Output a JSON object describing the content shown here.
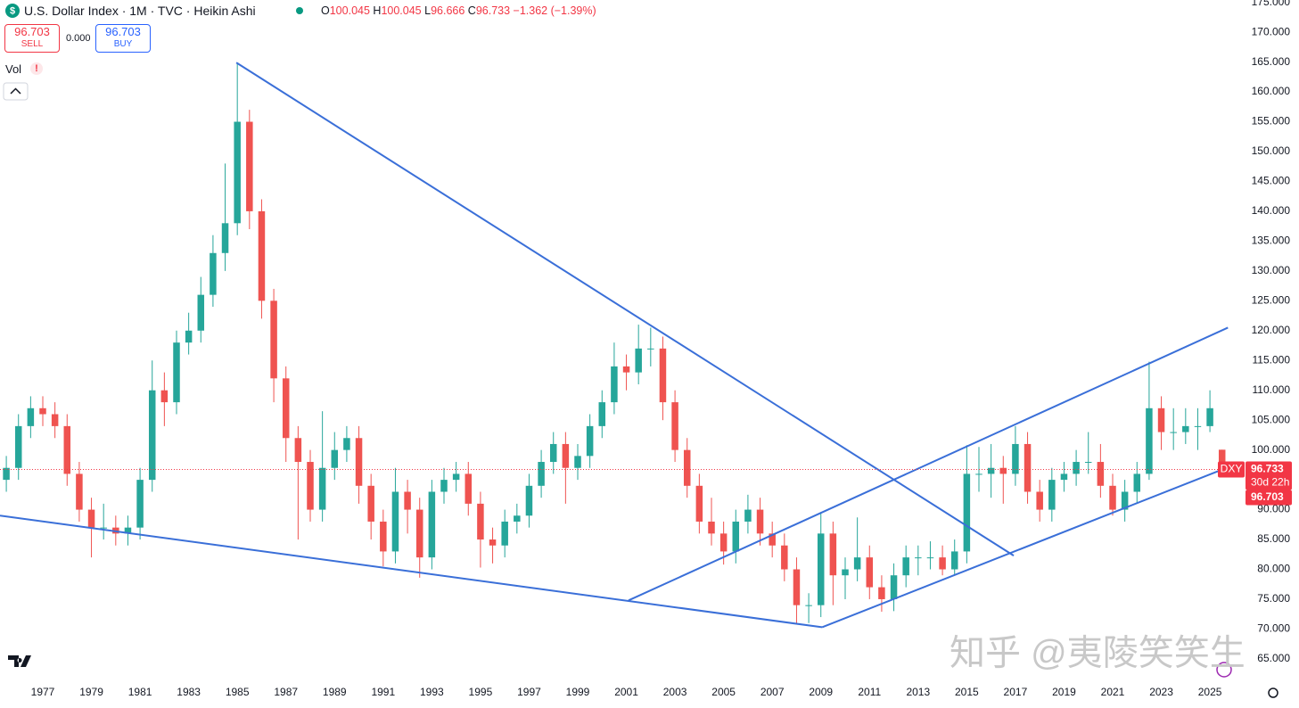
{
  "chart_data": {
    "type": "candlestick",
    "title": "U.S. Dollar Index · 1M · TVC · Heikin Ashi",
    "ohlc_labels": [
      "O",
      "H",
      "L",
      "C"
    ],
    "ohlc": [
      100.045,
      100.045,
      96.666,
      96.733
    ],
    "change": "−1.362 (−1.39%)",
    "sell": {
      "price": 96.703,
      "label": "SELL"
    },
    "spread": "0.000",
    "buy": {
      "price": 96.703,
      "label": "BUY"
    },
    "volume_label": "Vol",
    "watermark": "知乎 @夷陵笑笑生",
    "up_color": "#26a69a",
    "down_color": "#ef5350",
    "x": [
      1975.5,
      1976,
      1976.5,
      1977,
      1977.5,
      1978,
      1978.5,
      1979,
      1979.5,
      1980,
      1980.5,
      1981,
      1981.5,
      1982,
      1982.5,
      1983,
      1983.5,
      1984,
      1984.5,
      1985,
      1985.5,
      1986,
      1986.5,
      1987,
      1987.5,
      1988,
      1988.5,
      1989,
      1989.5,
      1990,
      1990.5,
      1991,
      1991.5,
      1992,
      1992.5,
      1993,
      1993.5,
      1994,
      1994.5,
      1995,
      1995.5,
      1996,
      1996.5,
      1997,
      1997.5,
      1998,
      1998.5,
      1999,
      1999.5,
      2000,
      2000.5,
      2001,
      2001.5,
      2002,
      2002.5,
      2003,
      2003.5,
      2004,
      2004.5,
      2005,
      2005.5,
      2006,
      2006.5,
      2007,
      2007.5,
      2008,
      2008.5,
      2009,
      2009.5,
      2010,
      2010.5,
      2011,
      2011.5,
      2012,
      2012.5,
      2013,
      2013.5,
      2014,
      2014.5,
      2015,
      2015.5,
      2016,
      2016.5,
      2017,
      2017.5,
      2018,
      2018.5,
      2019,
      2019.5,
      2020,
      2020.5,
      2021,
      2021.5,
      2022,
      2022.5,
      2023,
      2023.5,
      2024,
      2024.5,
      2025,
      2025.5
    ],
    "open": [
      95,
      97,
      104,
      107,
      106,
      104,
      96,
      90,
      87,
      87,
      86,
      87,
      95,
      110,
      108,
      118,
      120,
      126,
      133,
      138,
      155,
      140,
      125,
      112,
      102,
      98,
      90,
      97,
      100,
      102,
      94,
      88,
      83,
      93,
      90,
      82,
      93,
      95,
      96,
      91,
      85,
      84,
      88,
      89,
      94,
      98,
      101,
      97,
      99,
      104,
      108,
      114,
      113,
      117,
      117,
      108,
      100,
      94,
      88,
      86,
      83,
      88,
      90,
      86,
      84,
      80,
      74,
      74,
      86,
      79,
      80,
      82,
      77,
      75,
      79,
      82,
      82,
      82,
      80,
      83,
      96,
      96,
      97,
      96,
      101,
      93,
      90,
      95,
      96,
      98,
      98,
      94,
      90,
      93,
      96,
      107,
      103,
      103,
      104,
      104,
      100.045
    ],
    "high": [
      99,
      106,
      109,
      109,
      108,
      106,
      98,
      92,
      91,
      89,
      89,
      97,
      115,
      113,
      120,
      123,
      129,
      136,
      148,
      164.7,
      157,
      142,
      127,
      114,
      104,
      100,
      106.5,
      103,
      104,
      104,
      96,
      90,
      97,
      95,
      92,
      95,
      97,
      98,
      98,
      93,
      87,
      90,
      91,
      96,
      100,
      103,
      103,
      101,
      106,
      110,
      118,
      116,
      121,
      120.5,
      119,
      110,
      102,
      96,
      92,
      88,
      90,
      92.5,
      92,
      88,
      86,
      82,
      76,
      89.6,
      88,
      82,
      88.7,
      84,
      79,
      81,
      84,
      84,
      84.7,
      84,
      85,
      100.8,
      100.5,
      101,
      99,
      104,
      103,
      95,
      97,
      98,
      100,
      103,
      101,
      96,
      95,
      98,
      114.8,
      109,
      107,
      107,
      107,
      110,
      100.045
    ],
    "low": [
      93,
      95,
      102,
      104,
      102,
      94,
      88,
      82,
      85,
      84,
      84,
      85,
      93,
      104,
      106,
      116,
      118,
      124,
      130,
      136,
      137,
      122,
      108,
      98,
      85,
      88,
      88,
      95,
      98,
      91,
      85,
      80.5,
      81,
      86,
      78.6,
      80,
      91,
      93,
      89,
      80.3,
      81,
      82,
      86,
      87,
      92,
      96,
      91,
      95,
      97,
      102,
      106,
      110,
      111,
      114,
      105,
      98,
      92,
      86,
      84,
      80.8,
      81,
      86,
      84,
      82,
      78,
      71,
      71,
      72,
      74,
      75,
      78,
      75,
      72.9,
      73,
      77,
      79,
      80,
      79,
      79,
      81,
      93,
      92,
      91,
      94,
      91,
      88,
      88,
      93,
      94,
      96,
      92,
      89,
      88,
      91,
      95,
      100,
      100,
      101,
      100,
      103,
      96.666
    ],
    "close": [
      97,
      104,
      107,
      106,
      104,
      96,
      90,
      87,
      87,
      86,
      87,
      95,
      110,
      108,
      118,
      120,
      126,
      133,
      138,
      155,
      140,
      125,
      112,
      102,
      98,
      90,
      97,
      100,
      102,
      94,
      88,
      83,
      93,
      90,
      82,
      93,
      95,
      96,
      91,
      85,
      84,
      88,
      89,
      94,
      98,
      101,
      97,
      99,
      104,
      108,
      114,
      113,
      117,
      117,
      108,
      100,
      94,
      88,
      86,
      83,
      88,
      90,
      86,
      84,
      80,
      74,
      74,
      86,
      79,
      80,
      82,
      77,
      75,
      79,
      82,
      82,
      82,
      80,
      83,
      96,
      96,
      97,
      96,
      101,
      93,
      90,
      95,
      96,
      98,
      98,
      94,
      90,
      93,
      96,
      107,
      103,
      103,
      104,
      104,
      107,
      96.733
    ],
    "xlim": [
      1975.24,
      2026.39
    ],
    "xticks": [
      1977,
      1979,
      1981,
      1983,
      1985,
      1987,
      1989,
      1991,
      1993,
      1995,
      1997,
      1999,
      2001,
      2003,
      2005,
      2007,
      2009,
      2011,
      2013,
      2015,
      2017,
      2019,
      2021,
      2023,
      2025
    ],
    "ylim": [
      61.1,
      175.4
    ],
    "yticks": [
      {
        "value": 65,
        "label": "65.000"
      },
      {
        "value": 70,
        "label": "70.000"
      },
      {
        "value": 75,
        "label": "75.000"
      },
      {
        "value": 80,
        "label": "80.000"
      },
      {
        "value": 85,
        "label": "85.000"
      },
      {
        "value": 90,
        "label": "90.000"
      },
      {
        "value": 95,
        "label": "95.000"
      },
      {
        "value": 100,
        "label": "100.000"
      },
      {
        "value": 105,
        "label": "105.000"
      },
      {
        "value": 110,
        "label": "110.000"
      },
      {
        "value": 115,
        "label": "115.000"
      },
      {
        "value": 120,
        "label": "120.000"
      },
      {
        "value": 125,
        "label": "125.000"
      },
      {
        "value": 130,
        "label": "130.000"
      },
      {
        "value": 135,
        "label": "135.000"
      },
      {
        "value": 140,
        "label": "140.000"
      },
      {
        "value": 145,
        "label": "145.000"
      },
      {
        "value": 150,
        "label": "150.000"
      },
      {
        "value": 155,
        "label": "155.000"
      },
      {
        "value": 160,
        "label": "160.000"
      },
      {
        "value": 165,
        "label": "165.000"
      },
      {
        "value": 170,
        "label": "170.000"
      },
      {
        "value": 175,
        "label": "175.000"
      }
    ],
    "grid": false,
    "trendline_color": "#3a6fd8",
    "trendlines": [
      {
        "x": [
          1984.96,
          2016.93
        ],
        "y": [
          164.9,
          82.3
        ]
      },
      {
        "x": [
          1975.24,
          2009.05
        ],
        "y": [
          89.0,
          70.3
        ]
      },
      {
        "x": [
          2001.09,
          2025.74
        ],
        "y": [
          74.8,
          120.5
        ]
      },
      {
        "x": [
          2009.05,
          2025.74
        ],
        "y": [
          70.3,
          97.1
        ]
      }
    ],
    "price_line": {
      "symbol": "DXY",
      "value": 96.733,
      "countdown": "30d 22h",
      "bid": 96.703,
      "color": "#f23645"
    }
  }
}
